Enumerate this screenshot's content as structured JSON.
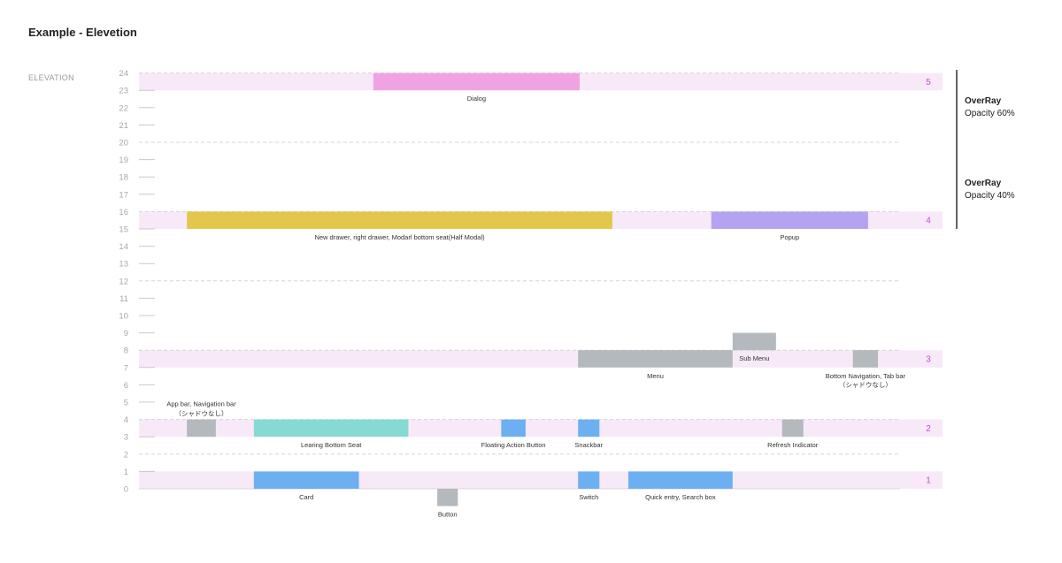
{
  "page": {
    "title": "Example - Elevetion"
  },
  "axis": {
    "title": "ELEVATION",
    "min": 0,
    "max": 24
  },
  "colors": {
    "band": "#f7e9f8",
    "level_label": "#c44ed2",
    "dialog": "#f0a3e3",
    "drawer": "#e3c74d",
    "popup": "#b5a3f1",
    "gray": "#b3b9bd",
    "teal": "#87d9d3",
    "blue": "#6cb0f2"
  },
  "levels": [
    {
      "label": "5",
      "band": [
        23,
        24
      ]
    },
    {
      "label": "4",
      "band": [
        15,
        16
      ]
    },
    {
      "label": "3",
      "band": [
        7,
        8
      ]
    },
    {
      "label": "2",
      "band": [
        3,
        4
      ]
    },
    {
      "label": "1",
      "band": [
        0,
        1
      ]
    }
  ],
  "dashed_lines": [
    24,
    20,
    16,
    12,
    8,
    4,
    2
  ],
  "overrays": [
    {
      "title": "OverRay",
      "subtitle": "Opacity 60%",
      "from": 20,
      "to": 24
    },
    {
      "title": "OverRay",
      "subtitle": "Opacity 40%",
      "from": 15,
      "to": 20
    }
  ],
  "components": [
    {
      "name": "dialog",
      "label": "Dialog",
      "color": "dialog",
      "elev": [
        23,
        24
      ],
      "span": [
        0.308,
        0.579
      ]
    },
    {
      "name": "drawer",
      "label": "New drawer, right drawer, Modarl bottom seat(Half Modal)",
      "color": "drawer",
      "elev": [
        15,
        16
      ],
      "span": [
        0.063,
        0.622
      ]
    },
    {
      "name": "popup",
      "label": "Popup",
      "color": "popup",
      "elev": [
        15,
        16
      ],
      "span": [
        0.752,
        0.958
      ]
    },
    {
      "name": "menu",
      "label": "Menu",
      "color": "gray",
      "elev": [
        7,
        8
      ],
      "span": [
        0.577,
        0.78
      ]
    },
    {
      "name": "sub-menu",
      "label": "Sub Menu",
      "color": "gray",
      "elev": [
        8,
        9
      ],
      "span": [
        0.78,
        0.837
      ]
    },
    {
      "name": "bottom-navigation",
      "label": "Bottom Navigation, Tab bar",
      "label2": "（シャドウなし）",
      "color": "gray",
      "elev": [
        7,
        8
      ],
      "span": [
        0.938,
        0.971
      ]
    },
    {
      "name": "app-bar",
      "label": "App bar, Navigation bar",
      "label2": "（シャドウなし）",
      "color": "gray",
      "elev": [
        3,
        4
      ],
      "span": [
        0.063,
        0.101
      ],
      "label_above": true
    },
    {
      "name": "learing-bottom-seat",
      "label": "Learing Bottom Seat",
      "color": "teal",
      "elev": [
        3,
        4
      ],
      "span": [
        0.151,
        0.354
      ]
    },
    {
      "name": "floating-action-button",
      "label": "Floating Action Button",
      "color": "blue",
      "elev": [
        3,
        4
      ],
      "span": [
        0.476,
        0.508
      ]
    },
    {
      "name": "snackbar",
      "label": "Snackbar",
      "color": "blue",
      "elev": [
        3,
        4
      ],
      "span": [
        0.577,
        0.605
      ]
    },
    {
      "name": "refresh-indicator",
      "label": "Refresh Indicator",
      "color": "gray",
      "elev": [
        3,
        4
      ],
      "span": [
        0.845,
        0.873
      ]
    },
    {
      "name": "card",
      "label": "Card",
      "color": "blue",
      "elev": [
        0,
        1
      ],
      "span": [
        0.151,
        0.289
      ]
    },
    {
      "name": "button",
      "label": "Button",
      "color": "gray",
      "elev": [
        -1,
        0
      ],
      "span": [
        0.392,
        0.419
      ]
    },
    {
      "name": "switch",
      "label": "Switch",
      "color": "blue",
      "elev": [
        0,
        1
      ],
      "span": [
        0.577,
        0.605
      ]
    },
    {
      "name": "quick-entry",
      "label": "Quick entry, Search box",
      "color": "blue",
      "elev": [
        0,
        1
      ],
      "span": [
        0.643,
        0.78
      ]
    }
  ]
}
